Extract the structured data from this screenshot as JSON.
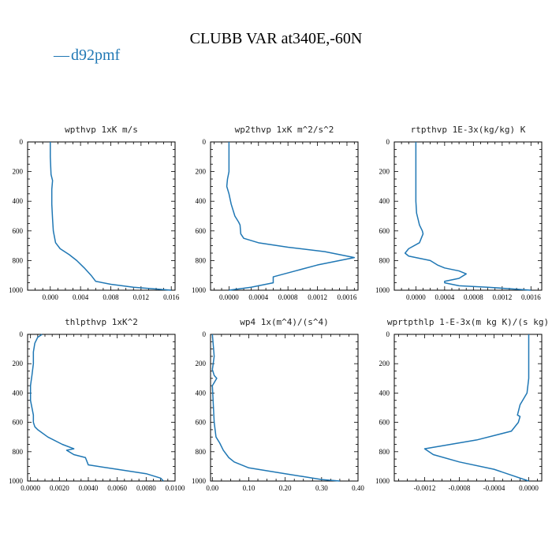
{
  "figure": {
    "title": "CLUBB VAR at340E,-60N",
    "legend": {
      "label": "d92pmf",
      "marker": "—",
      "color": "#1f77b4"
    }
  },
  "chart_data": [
    {
      "type": "line",
      "title": "wpthvp  1xK m/s",
      "xlim": [
        -0.003,
        0.0165
      ],
      "ylim": [
        1000,
        0
      ],
      "xticks": [
        0.0,
        0.004,
        0.008,
        0.012,
        0.016
      ],
      "xtick_labels": [
        "0.000",
        "0.004",
        "0.008",
        "0.012",
        "0.016"
      ],
      "yticks": [
        0,
        200,
        400,
        600,
        800,
        1000
      ],
      "ytick_labels": [
        "0",
        "200",
        "400",
        "600",
        "800",
        "1000"
      ],
      "series": [
        {
          "color": "#1f77b4",
          "x": [
            0.0,
            0.0,
            0.0001,
            0.0003,
            0.0002,
            0.0002,
            0.0003,
            0.0004,
            0.0007,
            0.0013,
            0.0025,
            0.0035,
            0.0045,
            0.0054,
            0.006,
            0.008,
            0.011,
            0.016
          ],
          "y": [
            0,
            100,
            220,
            260,
            320,
            420,
            520,
            600,
            680,
            720,
            760,
            800,
            850,
            900,
            940,
            960,
            980,
            1000
          ]
        }
      ]
    },
    {
      "type": "line",
      "title": "wp2thvp  1xK m^2/s^2",
      "xlim": [
        -0.00025,
        0.00175
      ],
      "ylim": [
        1000,
        0
      ],
      "xticks": [
        0.0,
        0.0004,
        0.0008,
        0.0012,
        0.0016
      ],
      "xtick_labels": [
        "0.0000",
        "0.0004",
        "0.0008",
        "0.0012",
        "0.0016"
      ],
      "yticks": [
        0,
        200,
        400,
        600,
        800,
        1000
      ],
      "ytick_labels": [
        "0",
        "200",
        "400",
        "600",
        "800",
        "1000"
      ],
      "series": [
        {
          "color": "#1f77b4",
          "x": [
            0.0,
            0.0,
            -2e-05,
            -3e-05,
            0.0,
            3e-05,
            8e-05,
            0.00013,
            0.00015,
            0.00016,
            0.0002,
            0.0004,
            0.0008,
            0.0013,
            0.0017,
            0.0015,
            0.0012,
            0.0009,
            0.0006,
            0.0006,
            0.0005,
            0.0003,
            0.0
          ],
          "y": [
            0,
            200,
            250,
            300,
            350,
            420,
            500,
            540,
            560,
            620,
            650,
            680,
            710,
            740,
            780,
            800,
            830,
            870,
            910,
            950,
            960,
            980,
            1000
          ]
        }
      ]
    },
    {
      "type": "line",
      "title": "rtpthvp  1E-3x(kg/kg) K",
      "xlim": [
        -0.0003,
        0.00175
      ],
      "ylim": [
        1000,
        0
      ],
      "xticks": [
        0.0,
        0.0004,
        0.0008,
        0.0012,
        0.0016
      ],
      "xtick_labels": [
        "0.0000",
        "0.0004",
        "0.0008",
        "0.0012",
        "0.0016"
      ],
      "yticks": [
        0,
        200,
        400,
        600,
        800,
        1000
      ],
      "ytick_labels": [
        "0",
        "200",
        "400",
        "600",
        "800",
        "1000"
      ],
      "series": [
        {
          "color": "#1f77b4",
          "x": [
            0.0,
            0.0,
            0.0,
            1e-05,
            3e-05,
            5e-05,
            9e-05,
            0.0001,
            5e-05,
            -0.0001,
            -0.00015,
            -0.0001,
            0.0001,
            0.0002,
            0.0003,
            0.0004,
            0.0006,
            0.0007,
            0.0006,
            0.0004,
            0.0004,
            0.0006,
            0.001,
            0.0016
          ],
          "y": [
            0,
            200,
            400,
            480,
            520,
            560,
            600,
            620,
            680,
            720,
            750,
            770,
            790,
            800,
            830,
            850,
            870,
            890,
            920,
            940,
            950,
            970,
            980,
            1000
          ]
        }
      ]
    },
    {
      "type": "line",
      "title": "thlpthvp  1xK^2",
      "xlim": [
        -0.0002,
        0.01
      ],
      "ylim": [
        1000,
        0
      ],
      "xticks": [
        0.0,
        0.002,
        0.004,
        0.006,
        0.008,
        0.01
      ],
      "xtick_labels": [
        "0.0000",
        "0.0020",
        "0.0040",
        "0.0060",
        "0.0080",
        "0.0100"
      ],
      "yticks": [
        0,
        200,
        400,
        600,
        800,
        1000
      ],
      "ytick_labels": [
        "0",
        "200",
        "400",
        "600",
        "800",
        "1000"
      ],
      "series": [
        {
          "color": "#1f77b4",
          "x": [
            0.0008,
            0.0005,
            0.0003,
            0.0002,
            0.0002,
            0.0001,
            0.0,
            0.0,
            0.0002,
            0.0002,
            0.0003,
            0.0005,
            0.0012,
            0.0022,
            0.003,
            0.0025,
            0.003,
            0.0038,
            0.004,
            0.006,
            0.008,
            0.009,
            0.0092
          ],
          "y": [
            0,
            20,
            60,
            120,
            200,
            280,
            350,
            450,
            550,
            600,
            630,
            650,
            700,
            750,
            780,
            790,
            820,
            840,
            890,
            920,
            950,
            980,
            1000
          ]
        }
      ]
    },
    {
      "type": "line",
      "title": "wp4  1x(m^4)/(s^4)",
      "xlim": [
        -0.005,
        0.4
      ],
      "ylim": [
        1000,
        0
      ],
      "xticks": [
        0.0,
        0.1,
        0.2,
        0.3,
        0.4
      ],
      "xtick_labels": [
        "0.00",
        "0.10",
        "0.20",
        "0.30",
        "0.40"
      ],
      "yticks": [
        0,
        200,
        400,
        600,
        800,
        1000
      ],
      "ytick_labels": [
        "0",
        "200",
        "400",
        "600",
        "800",
        "1000"
      ],
      "series": [
        {
          "color": "#1f77b4",
          "x": [
            0.0,
            0.005,
            0.0,
            0.005,
            0.012,
            0.0,
            0.003,
            0.005,
            0.01,
            0.02,
            0.03,
            0.045,
            0.06,
            0.1,
            0.15,
            0.2,
            0.25,
            0.3,
            0.35
          ],
          "y": [
            0,
            150,
            240,
            280,
            300,
            350,
            500,
            600,
            700,
            740,
            790,
            840,
            870,
            910,
            930,
            950,
            970,
            990,
            1000
          ]
        }
      ]
    },
    {
      "type": "line",
      "title": "wprtpthlp  1-E-3x(m kg K)/(s kg)",
      "xlim": [
        -0.00155,
        0.00015
      ],
      "ylim": [
        1000,
        0
      ],
      "xticks": [
        -0.0012,
        -0.0008,
        -0.0004,
        0.0
      ],
      "xtick_labels": [
        "-0.0012",
        "-0.0008",
        "-0.0004",
        "0.0000"
      ],
      "yticks": [
        0,
        200,
        400,
        600,
        800,
        1000
      ],
      "ytick_labels": [
        "0",
        "200",
        "400",
        "600",
        "800",
        "1000"
      ],
      "series": [
        {
          "color": "#1f77b4",
          "x": [
            0.0,
            0.0,
            -2e-05,
            -0.0001,
            -0.00013,
            -0.0001,
            -0.00012,
            -0.0002,
            -0.0006,
            -0.001,
            -0.0012,
            -0.0011,
            -0.0008,
            -0.0004,
            -0.0002,
            0.0
          ],
          "y": [
            0,
            300,
            400,
            480,
            550,
            560,
            600,
            660,
            720,
            760,
            780,
            820,
            870,
            920,
            960,
            1000
          ]
        }
      ]
    }
  ]
}
